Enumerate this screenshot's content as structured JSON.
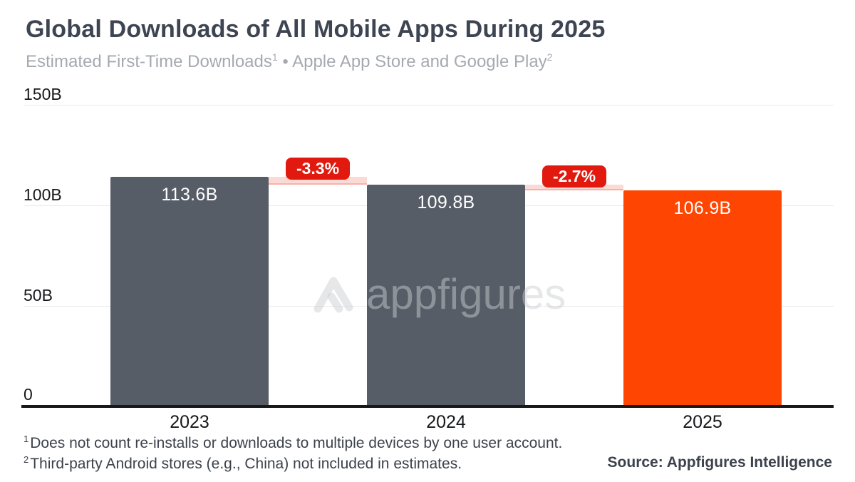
{
  "header": {
    "title": "Global Downloads of All Mobile Apps During 2025",
    "subtitle": {
      "part1": "Estimated First-Time Downloads",
      "sup1": "1",
      "part2": " • Apple App Store and Google Play",
      "sup2": "2"
    }
  },
  "chart_data": {
    "type": "bar",
    "title": "Global Downloads of All Mobile Apps During 2025",
    "subtitle": "Estimated First-Time Downloads¹ • Apple App Store and Google Play²",
    "categories": [
      "2023",
      "2024",
      "2025"
    ],
    "values": [
      113.6,
      109.8,
      106.9
    ],
    "value_labels": [
      "113.6B",
      "109.8B",
      "106.9B"
    ],
    "unit": "billions of first-time downloads",
    "deltas": [
      {
        "from": "2023",
        "to": "2024",
        "label": "-3.3%"
      },
      {
        "from": "2024",
        "to": "2025",
        "label": "-2.7%"
      }
    ],
    "ytick_labels": [
      "150B",
      "100B",
      "50B",
      "0"
    ],
    "ylim": [
      0,
      150
    ],
    "grid": true,
    "legend": "none",
    "bar_colors": [
      "#575D67",
      "#575D67",
      "#FF4502"
    ],
    "delta_badge_color": "#E1190E",
    "delta_band_color": "#FBDAD5"
  },
  "watermark": {
    "text": "appfigures",
    "logo": "appfigures-logo"
  },
  "footnotes": [
    {
      "sup": "1",
      "text": "Does not count re-installs or downloads to multiple devices by one user account."
    },
    {
      "sup": "2",
      "text": "Third-party Android stores (e.g., China) not included in estimates."
    }
  ],
  "source": "Source: Appfigures Intelligence"
}
